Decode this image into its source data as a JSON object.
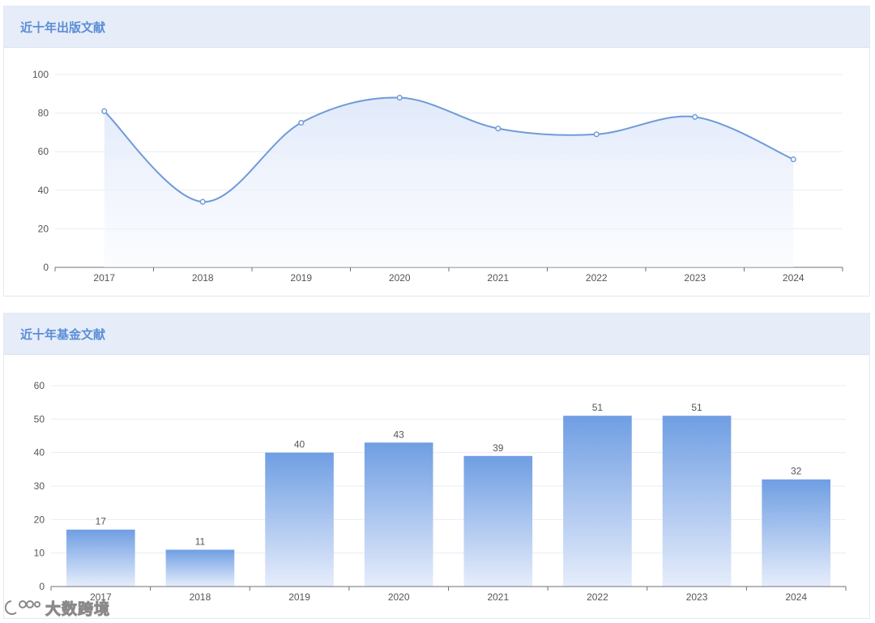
{
  "panels": {
    "publications_title": "近十年出版文献",
    "funding_title": "近十年基金文献"
  },
  "watermark": {
    "text": "大数跨境",
    "icon": "logo-icon"
  },
  "colors": {
    "line": "#6f9bd8",
    "bar_top": "#6f9ee3",
    "bar_bottom": "#e6edfb",
    "header_bg": "#e6edf9",
    "title": "#5b8dd6"
  },
  "chart_data": [
    {
      "type": "area",
      "smooth": true,
      "categories": [
        "2017",
        "2018",
        "2019",
        "2020",
        "2021",
        "2022",
        "2023",
        "2024"
      ],
      "values": [
        81,
        34,
        75,
        88,
        72,
        69,
        78,
        56
      ],
      "ylim": [
        0,
        100
      ],
      "yticks": [
        0,
        20,
        40,
        60,
        80,
        100
      ],
      "grid": true
    },
    {
      "type": "bar",
      "categories": [
        "2017",
        "2018",
        "2019",
        "2020",
        "2021",
        "2022",
        "2023",
        "2024"
      ],
      "values": [
        17,
        11,
        40,
        43,
        39,
        51,
        51,
        32
      ],
      "ylim": [
        0,
        60
      ],
      "yticks": [
        0,
        10,
        20,
        30,
        40,
        50,
        60
      ],
      "data_labels": true,
      "grid": true
    }
  ]
}
